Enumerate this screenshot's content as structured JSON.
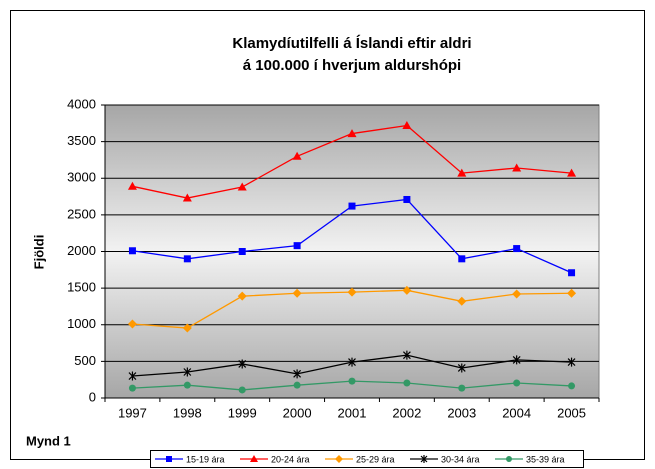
{
  "chart_data": {
    "type": "line",
    "title": [
      "Klamydíutilfelli á Íslandi eftir aldri",
      "á 100.000 í hverjum aldurshópi"
    ],
    "ylabel": "Fjöldi",
    "annotation": "Mynd 1",
    "categories": [
      "1997",
      "1998",
      "1999",
      "2000",
      "2001",
      "2002",
      "2003",
      "2004",
      "2005"
    ],
    "series": [
      {
        "name": "15-19 ára",
        "color": "#0000ff",
        "marker": "square",
        "values": [
          2010,
          1900,
          2000,
          2080,
          2620,
          2710,
          1900,
          2040,
          1710
        ]
      },
      {
        "name": "20-24 ára",
        "color": "#ff0000",
        "marker": "triangle",
        "values": [
          2890,
          2730,
          2880,
          3300,
          3610,
          3720,
          3070,
          3140,
          3070
        ]
      },
      {
        "name": "25-29 ára",
        "color": "#ff9900",
        "marker": "diamond",
        "values": [
          1010,
          955,
          1390,
          1430,
          1445,
          1470,
          1320,
          1420,
          1430
        ]
      },
      {
        "name": "30-34 ára",
        "color": "#000000",
        "marker": "star",
        "values": [
          300,
          355,
          465,
          330,
          490,
          585,
          410,
          520,
          490
        ]
      },
      {
        "name": "35-39 ára",
        "color": "#339966",
        "marker": "circle",
        "values": [
          135,
          175,
          110,
          175,
          230,
          205,
          135,
          205,
          165
        ]
      }
    ],
    "ylim": [
      0,
      4000
    ],
    "yticks": [
      0,
      500,
      1000,
      1500,
      2000,
      2500,
      3000,
      3500,
      4000
    ],
    "grid": true,
    "legend": "bottom"
  }
}
